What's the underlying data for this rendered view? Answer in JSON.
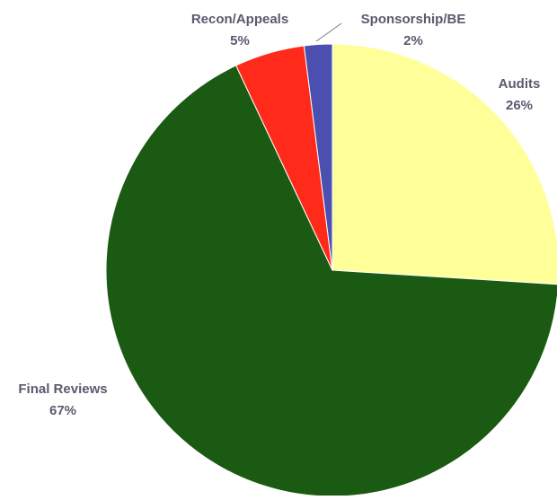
{
  "chart_data": {
    "type": "pie",
    "title": "",
    "slices": [
      {
        "label": "Audits",
        "value": 26,
        "display": "26%",
        "color": "#ffff99"
      },
      {
        "label": "Final Reviews",
        "value": 67,
        "display": "67%",
        "color": "#1b5a12"
      },
      {
        "label": "Recon/Appeals",
        "value": 5,
        "display": "5%",
        "color": "#ff2a1a"
      },
      {
        "label": "Sponsorship/BE",
        "value": 2,
        "display": "2%",
        "color": "#4a4fb0"
      }
    ],
    "start_angle": "12 o'clock",
    "direction": "clockwise",
    "labels": "outside, category name above percent",
    "legend": "none"
  }
}
